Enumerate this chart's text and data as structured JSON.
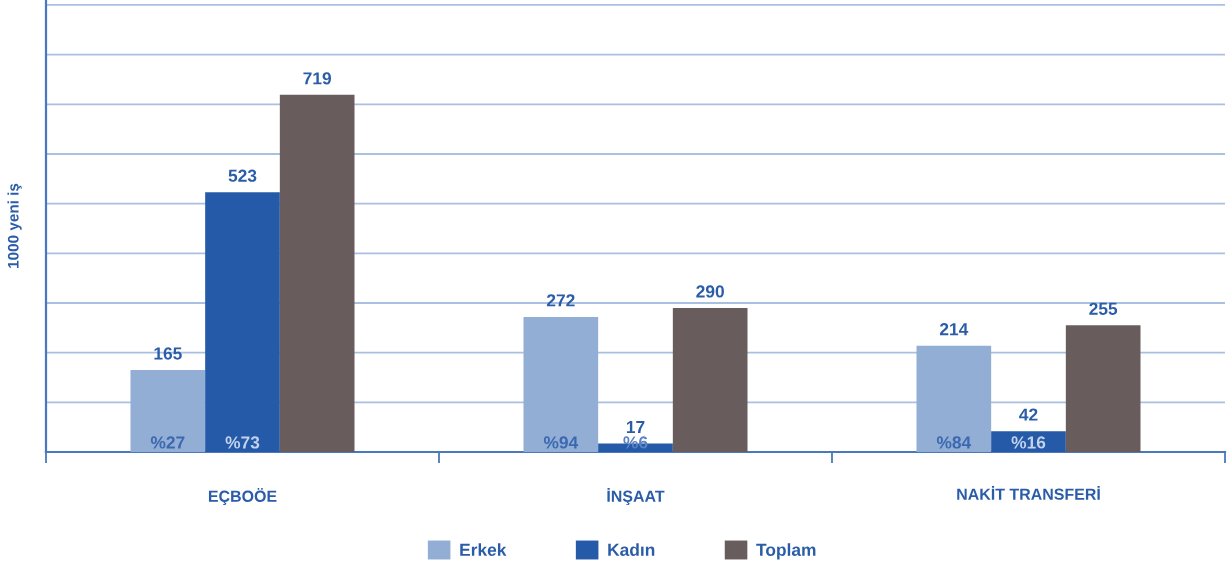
{
  "chart_data": {
    "type": "bar",
    "ylabel": "1000 yeni iş",
    "categories": [
      "EÇBOÖE",
      "İNŞAAT",
      "NAKİT TRANSFERİ"
    ],
    "series": [
      {
        "name": "Erkek",
        "color": "#92aed5",
        "values": [
          165,
          272,
          214
        ]
      },
      {
        "name": "Kadın",
        "color": "#245aa8",
        "values": [
          523,
          17,
          42
        ]
      },
      {
        "name": "Toplam",
        "color": "#695c5c",
        "values": [
          719,
          290,
          255
        ]
      }
    ],
    "ylim": [
      0,
      910
    ],
    "yticks": [
      {
        "value": 0,
        "label": null
      },
      {
        "value": 100,
        "label": null
      },
      {
        "value": 200,
        "label": null
      },
      {
        "value": 300,
        "label": null
      },
      {
        "value": 400,
        "label": null
      },
      {
        "value": 500,
        "label": null
      },
      {
        "value": 600,
        "label": null
      },
      {
        "value": 700,
        "label": null
      },
      {
        "value": 800,
        "label": null
      },
      {
        "value": 900,
        "label": null
      }
    ],
    "grid": "y",
    "legend": "bottom",
    "tick_labels": "x",
    "data_labels": true,
    "annotations": [
      "%27",
      "%73",
      "%94",
      "%6",
      "%84",
      "%16"
    ]
  }
}
